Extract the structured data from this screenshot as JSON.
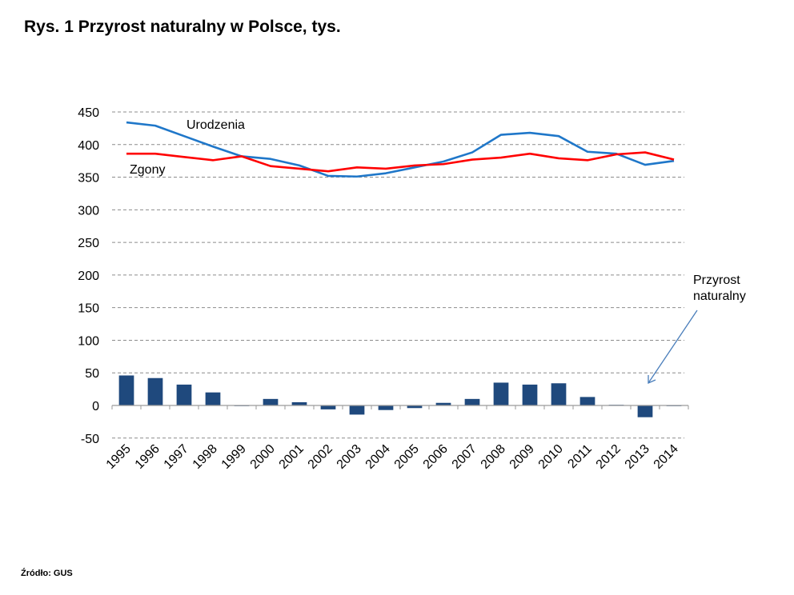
{
  "title": "Rys. 1 Przyrost naturalny w Polsce, tys.",
  "source": "Źródło: GUS",
  "chart_data": {
    "type": "bar+line",
    "title": "Rys. 1 Przyrost naturalny w Polsce, tys.",
    "xlabel": "",
    "ylabel": "",
    "ylim": [
      -50,
      450
    ],
    "yticks": [
      -50,
      0,
      50,
      100,
      150,
      200,
      250,
      300,
      350,
      400,
      450
    ],
    "grid": true,
    "categories": [
      "1995",
      "1996",
      "1997",
      "1998",
      "1999",
      "2000",
      "2001",
      "2002",
      "2003",
      "2004",
      "2005",
      "2006",
      "2007",
      "2008",
      "2009",
      "2010",
      "2011",
      "2012",
      "2013",
      "2014"
    ],
    "series": [
      {
        "name": "Urodzenia",
        "type": "line",
        "color": "#1f77c9",
        "values": [
          434,
          429,
          413,
          397,
          382,
          378,
          368,
          352,
          351,
          356,
          365,
          374,
          388,
          415,
          418,
          413,
          389,
          386,
          369,
          375
        ]
      },
      {
        "name": "Zgony",
        "type": "line",
        "color": "#ff0000",
        "values": [
          386,
          386,
          381,
          376,
          382,
          367,
          363,
          359,
          365,
          363,
          368,
          370,
          377,
          380,
          386,
          379,
          376,
          385,
          388,
          377
        ]
      },
      {
        "name": "Przyrost naturalny",
        "type": "bar",
        "color": "#1f497d",
        "values": [
          46,
          42,
          32,
          20,
          0,
          10,
          5,
          -6,
          -14,
          -7,
          -4,
          4,
          10,
          35,
          32,
          34,
          13,
          1,
          -18,
          -1
        ]
      }
    ],
    "annotations": [
      {
        "text": "Urodzenia",
        "series": "Urodzenia"
      },
      {
        "text": "Zgony",
        "series": "Zgony"
      },
      {
        "text_lines": [
          "Przyrost",
          "naturalny"
        ],
        "series": "Przyrost naturalny",
        "arrow": true
      }
    ]
  }
}
